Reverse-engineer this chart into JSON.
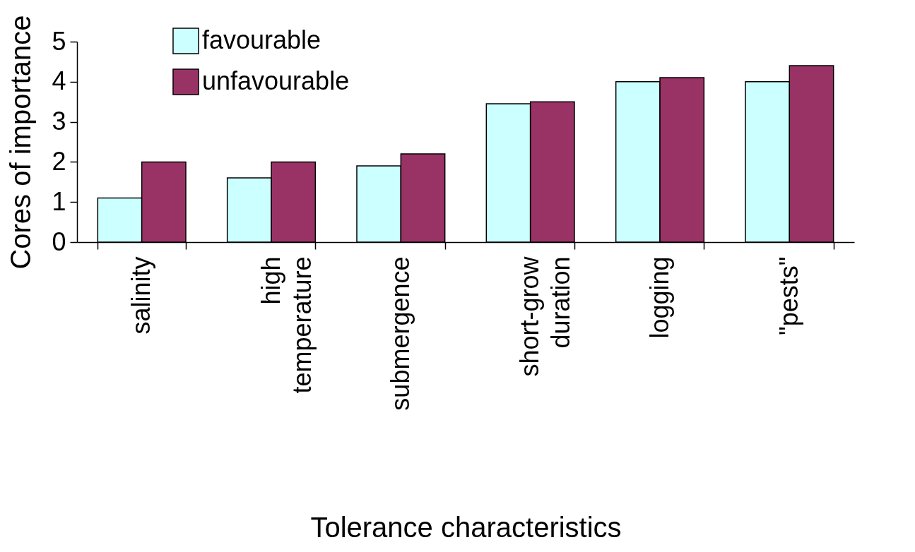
{
  "chart_data": {
    "type": "bar",
    "xlabel": "Tolerance characteristics",
    "ylabel": "Cores of importance",
    "categories": [
      "salinity",
      "high temperature",
      "submergence",
      "short-grow duration",
      "logging",
      "\"pests\""
    ],
    "series": [
      {
        "name": "favourable",
        "color": "#ccffff",
        "values": [
          1.1,
          1.6,
          1.9,
          3.45,
          4.0,
          4.0
        ]
      },
      {
        "name": "unfavourable",
        "color": "#993366",
        "values": [
          2.0,
          2.0,
          2.2,
          3.5,
          4.1,
          4.4
        ]
      }
    ],
    "ylim": [
      0,
      5
    ],
    "yticks": [
      0,
      1,
      2,
      3,
      4,
      5
    ],
    "grid": false,
    "legend": "top left"
  }
}
